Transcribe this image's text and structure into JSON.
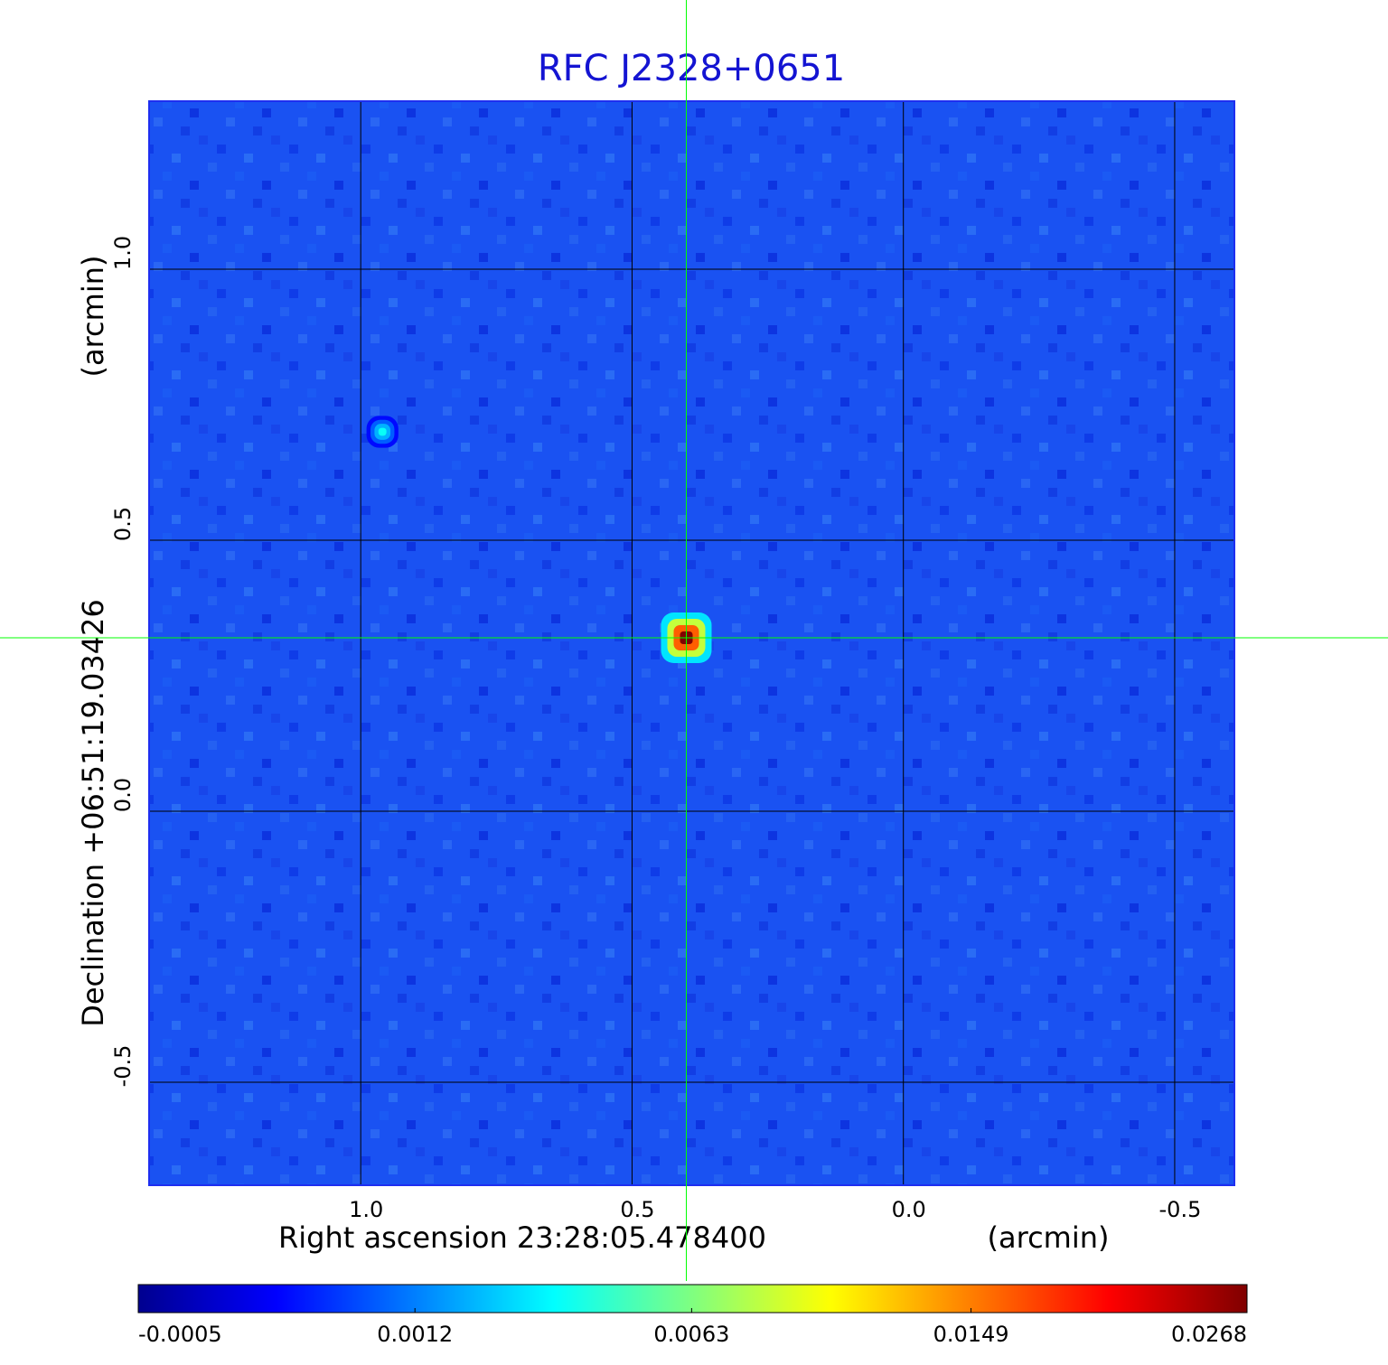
{
  "chart_data": {
    "type": "image",
    "title": "RFC J2328+0651",
    "xlabel": "Right ascension  23:28:05.478400",
    "xunit": "(arcmin)",
    "ylabel": "Declination  +06:51:19.03426",
    "yunit": "(arcmin)",
    "xlim": [
      1.39,
      -0.61
    ],
    "ylim": [
      -0.69,
      1.31
    ],
    "xticks": [
      {
        "value": 1,
        "label": "1.0"
      },
      0.5,
      {
        "value": 0,
        "label": "0.0"
      },
      -0.5
    ],
    "yticks": [
      -0.5,
      {
        "value": 0,
        "label": "0.0"
      },
      0.5,
      {
        "value": 1,
        "label": "1.0"
      }
    ],
    "grid": true,
    "colormap": "jet",
    "colorbar_scale": "sqrt",
    "colorbar_ticks": [
      -0.0005,
      0.0012,
      0.0063,
      0.0149,
      0.0268
    ],
    "sources": [
      {
        "x": 0.4,
        "y": 0.32,
        "value": 0.0268
      },
      {
        "x": 0.96,
        "y": 0.7,
        "value": 0.0035
      }
    ],
    "crosshair_color": "#00ff00"
  }
}
